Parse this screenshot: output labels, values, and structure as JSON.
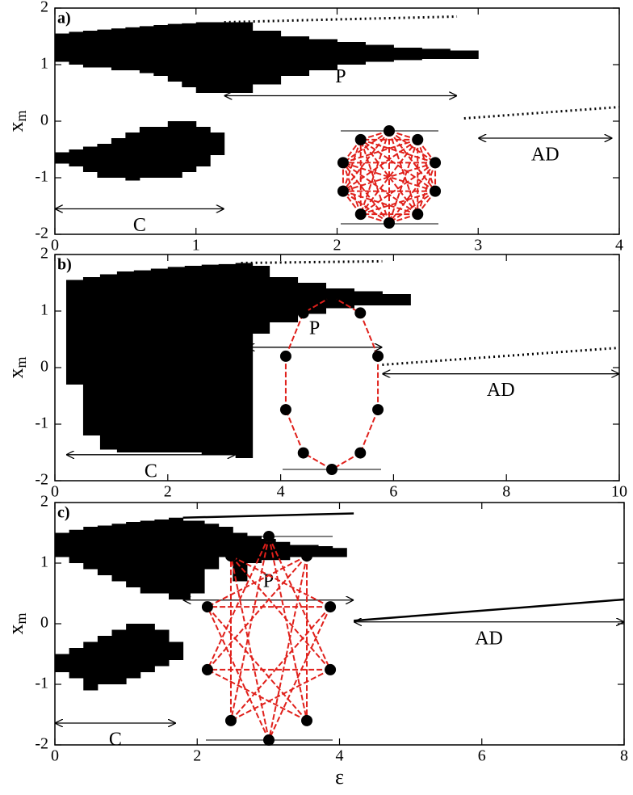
{
  "chart_data": [
    {
      "type": "range",
      "label": "a)",
      "ylabel": [
        "x",
        "m"
      ],
      "xlim": [
        0,
        4
      ],
      "xticks": [
        0,
        1,
        2,
        3,
        4
      ],
      "ylim": [
        -2,
        2
      ],
      "yticks": [
        -2,
        -1,
        0,
        1,
        2
      ],
      "color": "#000000",
      "bands": [
        {
          "x": [
            0,
            0.1,
            0.2,
            0.3,
            0.4,
            0.5,
            0.6,
            0.7,
            0.8,
            0.9,
            1.0,
            1.1
          ],
          "low": [
            1.05,
            1.0,
            0.95,
            0.95,
            0.9,
            0.9,
            0.85,
            0.8,
            0.7,
            0.6,
            0.5,
            0.5
          ],
          "high": [
            1.55,
            1.58,
            1.6,
            1.62,
            1.64,
            1.66,
            1.68,
            1.7,
            1.72,
            1.73,
            1.75,
            1.75
          ]
        },
        {
          "x": [
            0,
            0.1,
            0.2,
            0.3,
            0.4,
            0.5,
            0.6,
            0.7,
            0.8,
            0.9,
            1.0,
            1.1
          ],
          "low": [
            -0.75,
            -0.8,
            -0.9,
            -1.0,
            -1.0,
            -1.05,
            -1.0,
            -1.0,
            -1.0,
            -0.9,
            -0.8,
            -0.6
          ],
          "high": [
            -0.55,
            -0.5,
            -0.45,
            -0.4,
            -0.3,
            -0.2,
            -0.1,
            -0.1,
            0,
            0,
            -0.1,
            -0.2
          ]
        },
        {
          "x": [
            1.2,
            1.4,
            1.6,
            1.8,
            2.0,
            2.2,
            2.4,
            2.6,
            2.8
          ],
          "low": [
            0.5,
            0.65,
            0.8,
            0.9,
            1.0,
            1.05,
            1.08,
            1.1,
            1.1
          ],
          "high": [
            1.75,
            1.6,
            1.5,
            1.45,
            1.4,
            1.35,
            1.3,
            1.28,
            1.25
          ]
        }
      ],
      "lines": [
        {
          "x": [
            1.2,
            2.0,
            2.85
          ],
          "y": [
            1.75,
            1.8,
            1.85
          ],
          "style": "dotted"
        },
        {
          "x": [
            2.9,
            4.0
          ],
          "y": [
            0.05,
            0.25
          ],
          "style": "dotted"
        }
      ],
      "annotations": [
        {
          "text": "P",
          "x": [
            1.2,
            2.85
          ],
          "y": 0.45,
          "label_side": "above"
        },
        {
          "text": "C",
          "x": [
            0,
            1.2
          ],
          "y": -1.55,
          "label_side": "below"
        },
        {
          "text": "AD",
          "x": [
            3.0,
            3.95
          ],
          "y": -0.3,
          "label_side": "below"
        }
      ]
    },
    {
      "type": "range",
      "label": "b)",
      "ylabel": [
        "x",
        "m"
      ],
      "xlim": [
        0,
        10
      ],
      "xticks": [
        0,
        2,
        4,
        6,
        8,
        10
      ],
      "ylim": [
        -2,
        2
      ],
      "yticks": [
        -2,
        -1,
        0,
        1,
        2
      ],
      "color": "#000000",
      "bands": [
        {
          "x": [
            0.2,
            0.5,
            0.8,
            1.1,
            1.4,
            1.7,
            2.0,
            2.3,
            2.6,
            2.9,
            3.2
          ],
          "low": [
            -0.3,
            -1.2,
            -1.45,
            -1.5,
            -1.5,
            -1.5,
            -1.5,
            -1.5,
            -1.55,
            -1.55,
            -1.6
          ],
          "high": [
            1.55,
            1.6,
            1.65,
            1.7,
            1.72,
            1.75,
            1.78,
            1.8,
            1.82,
            1.83,
            1.85
          ]
        },
        {
          "x": [
            3.3,
            3.8,
            4.3,
            4.8,
            5.3,
            5.8
          ],
          "low": [
            0.6,
            0.8,
            0.95,
            1.05,
            1.1,
            1.1
          ],
          "high": [
            1.8,
            1.6,
            1.5,
            1.4,
            1.35,
            1.3
          ]
        }
      ],
      "lines": [
        {
          "x": [
            3.3,
            5.8
          ],
          "y": [
            1.85,
            1.88
          ],
          "style": "dotted"
        },
        {
          "x": [
            5.8,
            10
          ],
          "y": [
            0.05,
            0.35
          ],
          "style": "dotted"
        }
      ],
      "annotations": [
        {
          "text": "P",
          "x": [
            3.4,
            5.8
          ],
          "y": 0.36,
          "label_side": "above"
        },
        {
          "text": "C",
          "x": [
            0.2,
            3.2
          ],
          "y": -1.54,
          "label_side": "below"
        },
        {
          "text": "AD",
          "x": [
            5.8,
            10
          ],
          "y": -0.11,
          "label_side": "below"
        }
      ]
    },
    {
      "type": "range",
      "label": "c)",
      "ylabel": [
        "x",
        "m"
      ],
      "xlabel": "ε",
      "xlim": [
        0,
        8
      ],
      "xticks": [
        0,
        2,
        4,
        6,
        8
      ],
      "ylim": [
        -2,
        2
      ],
      "yticks": [
        -2,
        -1,
        0,
        1,
        2
      ],
      "color": "#000000",
      "bands": [
        {
          "x": [
            0,
            0.2,
            0.4,
            0.6,
            0.8,
            1.0,
            1.2,
            1.4,
            1.6
          ],
          "low": [
            1.1,
            1.0,
            0.9,
            0.8,
            0.7,
            0.6,
            0.5,
            0.5,
            0.4
          ],
          "high": [
            1.5,
            1.55,
            1.6,
            1.62,
            1.65,
            1.68,
            1.7,
            1.72,
            1.75
          ]
        },
        {
          "x": [
            0,
            0.2,
            0.4,
            0.6,
            0.8,
            1.0,
            1.2,
            1.4,
            1.6
          ],
          "low": [
            -0.8,
            -0.9,
            -1.1,
            -1.0,
            -1.0,
            -0.9,
            -0.8,
            -0.7,
            -0.6
          ],
          "high": [
            -0.5,
            -0.4,
            -0.3,
            -0.2,
            -0.1,
            0,
            0,
            -0.1,
            -0.3
          ]
        },
        {
          "x": [
            1.7,
            1.9,
            2.1,
            2.3,
            2.5,
            2.7,
            2.9,
            3.1,
            3.3,
            3.5,
            3.7,
            3.9
          ],
          "low": [
            0.4,
            0.5,
            0.9,
            1.1,
            0.7,
            1.0,
            1.05,
            1.05,
            1.1,
            1.1,
            1.1,
            1.1
          ],
          "high": [
            1.7,
            1.7,
            1.65,
            1.6,
            1.5,
            1.45,
            1.4,
            1.35,
            1.3,
            1.3,
            1.28,
            1.25
          ]
        }
      ],
      "lines": [
        {
          "x": [
            1.8,
            4.2
          ],
          "y": [
            1.75,
            1.82
          ],
          "style": "solid"
        },
        {
          "x": [
            4.2,
            8
          ],
          "y": [
            0.05,
            0.4
          ],
          "style": "solid"
        }
      ],
      "annotations": [
        {
          "text": "P",
          "x": [
            1.8,
            4.2
          ],
          "y": 0.39,
          "label_side": "above"
        },
        {
          "text": "C",
          "x": [
            0,
            1.7
          ],
          "y": -1.64,
          "label_side": "below"
        },
        {
          "text": "AD",
          "x": [
            4.2,
            8
          ],
          "y": 0.03,
          "label_side": "below"
        }
      ]
    }
  ]
}
